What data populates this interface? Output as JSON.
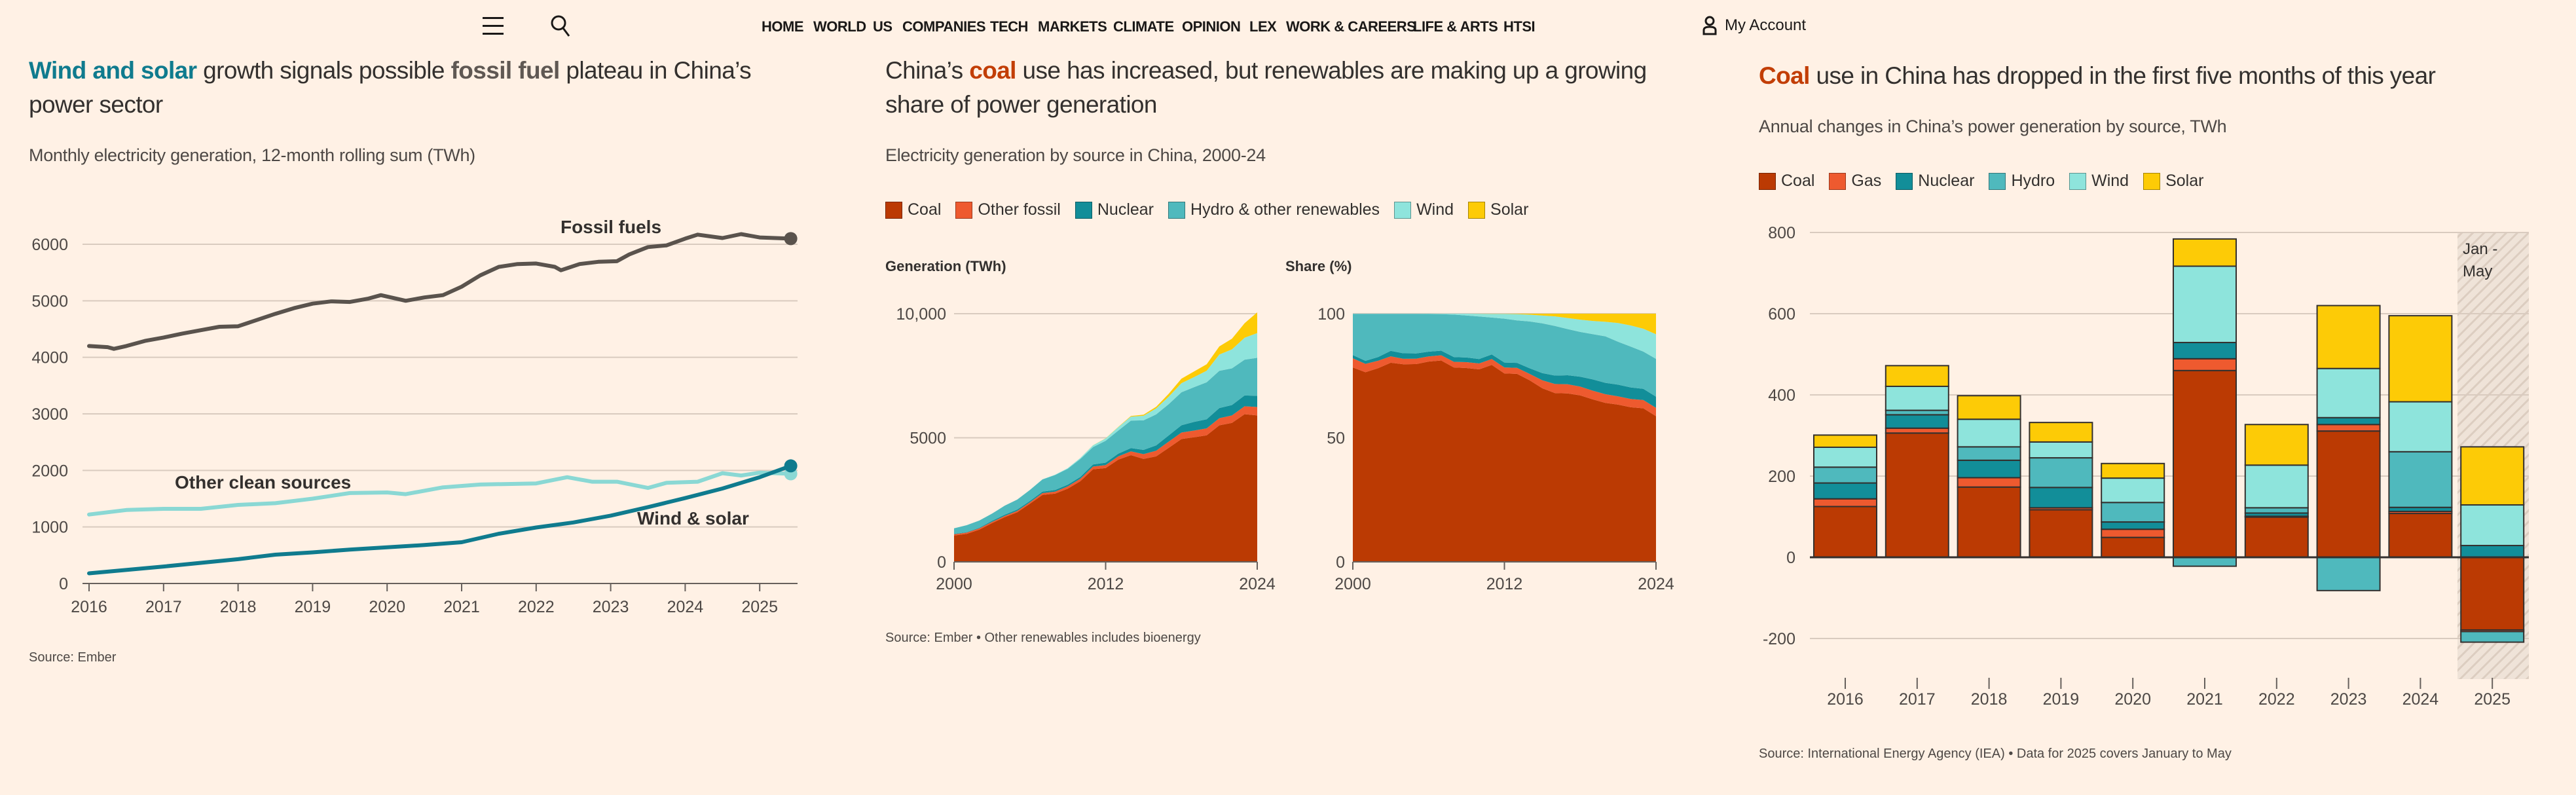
{
  "nav": {
    "menu_icon": "hamburger-icon",
    "search_icon": "search-icon",
    "items": [
      "HOME",
      "WORLD",
      "US",
      "COMPANIES",
      "TECH",
      "MARKETS",
      "CLIMATE",
      "OPINION",
      "LEX",
      "WORK & CAREERS",
      "LIFE & ARTS",
      "HTSI"
    ],
    "account_icon": "user-icon",
    "account_label": "My Account"
  },
  "colors": {
    "background": "#fff1e5",
    "coal": "#bb3a03",
    "gas": "#ee5a2f",
    "nuclear": "#128e99",
    "hydro": "#4fb9bd",
    "wind": "#8ee4dc",
    "solar": "#fdcb06",
    "fossil_line": "#5a534d",
    "wind_solar_line": "#0f7b8e",
    "other_clean_line": "#8ad8d4"
  },
  "panel1": {
    "title_parts": [
      "Wind and solar",
      " growth signals possible ",
      "fossil fuel",
      " plateau in China’s power sector"
    ],
    "subtitle": "Monthly electricity generation, 12-month rolling sum (TWh)",
    "source": "Source: Ember"
  },
  "panel2": {
    "title_parts": [
      "China’s ",
      "coal",
      " use has increased, but renewables are making up a growing share of power generation"
    ],
    "subtitle": "Electricity generation by source in China, 2000-24",
    "legend": [
      "Coal",
      "Other fossil",
      "Nuclear",
      "Hydro & other renewables",
      "Wind",
      "Solar"
    ],
    "source": "Source: Ember • Other renewables includes bioenergy"
  },
  "panel3": {
    "title_parts": [
      "Coal",
      " use in China has dropped in the first five months of this year"
    ],
    "subtitle": "Annual changes in China’s power generation by source, TWh",
    "legend": [
      "Coal",
      "Gas",
      "Nuclear",
      "Hydro",
      "Wind",
      "Solar"
    ],
    "source": "Source: International Energy Agency (IEA) • Data for 2025 covers January to May"
  },
  "chart_data": [
    {
      "type": "line",
      "xlabel": "",
      "ylabel": "",
      "ylim": [
        0,
        6000
      ],
      "yticks": [
        "0",
        "1000",
        "2000",
        "3000",
        "4000",
        "5000",
        "6000"
      ],
      "xticks": [
        "2016",
        "2017",
        "2018",
        "2019",
        "2020",
        "2021",
        "2022",
        "2023",
        "2024",
        "2025"
      ],
      "grid": true,
      "series": [
        {
          "name": "Fossil fuels",
          "color_key": "fossil_line",
          "end_marker": true,
          "points": [
            [
              "2016-01",
              4200
            ],
            [
              "2016-04",
              4180
            ],
            [
              "2016-05",
              4150
            ],
            [
              "2016-07",
              4200
            ],
            [
              "2016-10",
              4290
            ],
            [
              "2017-01",
              4350
            ],
            [
              "2017-04",
              4420
            ],
            [
              "2017-07",
              4480
            ],
            [
              "2017-10",
              4540
            ],
            [
              "2018-01",
              4550
            ],
            [
              "2018-04",
              4660
            ],
            [
              "2018-07",
              4770
            ],
            [
              "2018-10",
              4870
            ],
            [
              "2019-01",
              4950
            ],
            [
              "2019-04",
              4990
            ],
            [
              "2019-07",
              4980
            ],
            [
              "2019-10",
              5040
            ],
            [
              "2019-12",
              5100
            ],
            [
              "2020-04",
              5000
            ],
            [
              "2020-07",
              5060
            ],
            [
              "2020-10",
              5100
            ],
            [
              "2021-01",
              5250
            ],
            [
              "2021-04",
              5450
            ],
            [
              "2021-07",
              5600
            ],
            [
              "2021-10",
              5650
            ],
            [
              "2022-01",
              5660
            ],
            [
              "2022-04",
              5600
            ],
            [
              "2022-05",
              5540
            ],
            [
              "2022-08",
              5650
            ],
            [
              "2022-11",
              5690
            ],
            [
              "2023-02",
              5700
            ],
            [
              "2023-04",
              5820
            ],
            [
              "2023-07",
              5950
            ],
            [
              "2023-10",
              5980
            ],
            [
              "2024-01",
              6100
            ],
            [
              "2024-03",
              6170
            ],
            [
              "2024-07",
              6110
            ],
            [
              "2024-10",
              6180
            ],
            [
              "2025-01",
              6120
            ],
            [
              "2025-06",
              6100
            ]
          ]
        },
        {
          "name": "Other clean sources",
          "color_key": "other_clean_line",
          "end_marker": true,
          "points": [
            [
              "2016-01",
              1220
            ],
            [
              "2016-07",
              1300
            ],
            [
              "2017-01",
              1320
            ],
            [
              "2017-07",
              1320
            ],
            [
              "2018-01",
              1390
            ],
            [
              "2018-07",
              1420
            ],
            [
              "2019-01",
              1500
            ],
            [
              "2019-07",
              1600
            ],
            [
              "2020-01",
              1610
            ],
            [
              "2020-04",
              1580
            ],
            [
              "2020-10",
              1700
            ],
            [
              "2021-04",
              1750
            ],
            [
              "2022-01",
              1770
            ],
            [
              "2022-06",
              1880
            ],
            [
              "2022-10",
              1800
            ],
            [
              "2023-02",
              1800
            ],
            [
              "2023-07",
              1690
            ],
            [
              "2023-10",
              1780
            ],
            [
              "2024-03",
              1800
            ],
            [
              "2024-07",
              1950
            ],
            [
              "2024-10",
              1910
            ],
            [
              "2025-01",
              1960
            ],
            [
              "2025-06",
              1940
            ]
          ]
        },
        {
          "name": "Wind & solar",
          "color_key": "wind_solar_line",
          "end_marker": true,
          "points": [
            [
              "2016-01",
              180
            ],
            [
              "2017-01",
              300
            ],
            [
              "2018-01",
              430
            ],
            [
              "2018-07",
              510
            ],
            [
              "2019-01",
              550
            ],
            [
              "2019-07",
              600
            ],
            [
              "2020-01",
              640
            ],
            [
              "2020-07",
              680
            ],
            [
              "2021-01",
              730
            ],
            [
              "2021-07",
              880
            ],
            [
              "2022-01",
              990
            ],
            [
              "2022-07",
              1080
            ],
            [
              "2023-01",
              1200
            ],
            [
              "2023-07",
              1350
            ],
            [
              "2024-01",
              1510
            ],
            [
              "2024-07",
              1680
            ],
            [
              "2025-01",
              1880
            ],
            [
              "2025-06",
              2080
            ]
          ]
        }
      ]
    },
    {
      "type": "area",
      "stacking": "normal",
      "title": "Generation (TWh)",
      "ylim": [
        0,
        10000
      ],
      "yticks": [
        "0",
        "5000",
        "10,000"
      ],
      "xticks": [
        "2000",
        "2012",
        "2024"
      ],
      "x": [
        2000,
        2001,
        2002,
        2003,
        2004,
        2005,
        2006,
        2007,
        2008,
        2009,
        2010,
        2011,
        2012,
        2013,
        2014,
        2015,
        2016,
        2017,
        2018,
        2019,
        2020,
        2021,
        2022,
        2023,
        2024
      ],
      "series": [
        {
          "name": "Coal",
          "color_key": "coal",
          "values": [
            1060,
            1130,
            1300,
            1560,
            1800,
            2000,
            2340,
            2700,
            2750,
            2950,
            3250,
            3730,
            3780,
            4120,
            4300,
            4150,
            4250,
            4600,
            4950,
            5020,
            5100,
            5500,
            5600,
            5950,
            5900
          ]
        },
        {
          "name": "Other fossil",
          "color_key": "gas",
          "values": [
            50,
            50,
            50,
            50,
            50,
            55,
            60,
            70,
            80,
            90,
            100,
            110,
            120,
            130,
            150,
            190,
            230,
            250,
            260,
            270,
            280,
            290,
            300,
            320,
            340
          ]
        },
        {
          "name": "Nuclear",
          "color_key": "nuclear",
          "values": [
            17,
            18,
            25,
            43,
            50,
            53,
            55,
            62,
            68,
            70,
            74,
            86,
            98,
            111,
            133,
            171,
            213,
            248,
            295,
            348,
            366,
            408,
            418,
            435,
            451
          ]
        },
        {
          "name": "Hydro & other renewables",
          "color_key": "hydro",
          "values": [
            225,
            280,
            290,
            290,
            360,
            400,
            440,
            490,
            600,
            640,
            720,
            700,
            880,
            930,
            1110,
            1190,
            1250,
            1260,
            1330,
            1400,
            1490,
            1500,
            1480,
            1440,
            1530
          ]
        },
        {
          "name": "Wind",
          "color_key": "wind",
          "values": [
            1,
            1,
            1,
            1,
            1,
            2,
            4,
            6,
            13,
            27,
            45,
            70,
            96,
            138,
            160,
            186,
            241,
            303,
            366,
            406,
            467,
            656,
            763,
            886,
            997
          ]
        },
        {
          "name": "Solar",
          "color_key": "solar",
          "values": [
            0,
            0,
            0,
            0,
            0,
            0,
            0,
            0,
            0,
            0,
            1,
            3,
            4,
            9,
            24,
            45,
            67,
            118,
            178,
            225,
            261,
            327,
            428,
            584,
            834
          ]
        }
      ]
    },
    {
      "type": "area",
      "stacking": "percent",
      "title": "Share (%)",
      "ylim": [
        0,
        100
      ],
      "yticks": [
        "0",
        "50",
        "100"
      ],
      "xticks": [
        "2000",
        "2012",
        "2024"
      ],
      "series_source": "Generation (TWh)"
    },
    {
      "type": "bar",
      "stacking": "normal",
      "categories": [
        "2016",
        "2017",
        "2018",
        "2019",
        "2020",
        "2021",
        "2022",
        "2023",
        "2024",
        "2025"
      ],
      "ylim": [
        -200,
        800
      ],
      "yticks": [
        "-200",
        "0",
        "200",
        "400",
        "600",
        "800"
      ],
      "annotation": "Jan - May",
      "series": [
        {
          "name": "Coal",
          "color_key": "coal",
          "values": [
            125,
            306,
            173,
            117,
            49,
            460,
            99,
            311,
            108,
            -179
          ]
        },
        {
          "name": "Gas",
          "color_key": "gas",
          "values": [
            19,
            12,
            23,
            5,
            20,
            29,
            2,
            16,
            5,
            -4
          ]
        },
        {
          "name": "Nuclear",
          "color_key": "nuclear",
          "values": [
            39,
            33,
            43,
            50,
            18,
            40,
            8,
            17,
            10,
            29
          ]
        },
        {
          "name": "Hydro",
          "color_key": "hydro",
          "values": [
            39,
            11,
            33,
            73,
            48,
            -22,
            13,
            -82,
            137,
            -26
          ]
        },
        {
          "name": "Wind",
          "color_key": "wind",
          "values": [
            49,
            59,
            68,
            39,
            60,
            188,
            105,
            121,
            123,
            100
          ]
        },
        {
          "name": "Solar",
          "color_key": "solar",
          "values": [
            30,
            51,
            58,
            48,
            36,
            67,
            100,
            155,
            212,
            143
          ]
        }
      ]
    }
  ]
}
